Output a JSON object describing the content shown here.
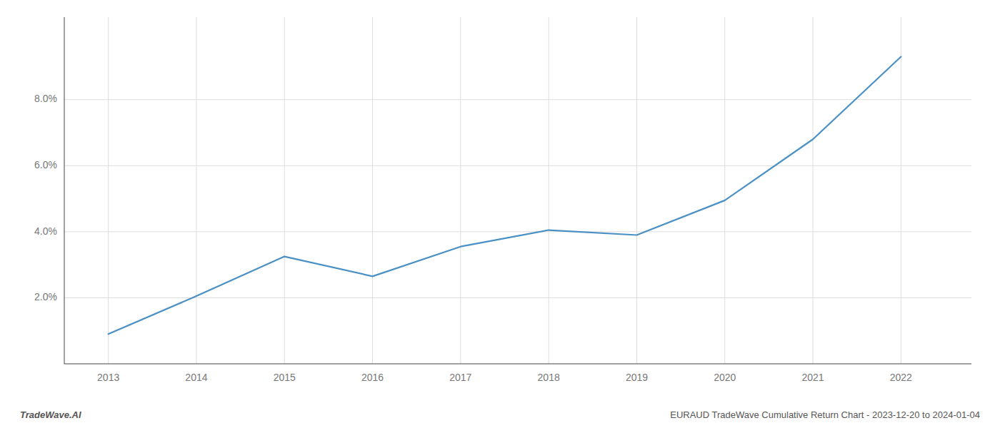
{
  "chart_data": {
    "type": "line",
    "x": [
      2013,
      2014,
      2015,
      2016,
      2017,
      2018,
      2019,
      2020,
      2021,
      2022
    ],
    "values": [
      0.009,
      0.0205,
      0.0325,
      0.0265,
      0.0355,
      0.0405,
      0.039,
      0.0495,
      0.068,
      0.093
    ],
    "color": "#4a90c4",
    "xlim": [
      2012.5,
      2022.8
    ],
    "xticks": [
      2013,
      2014,
      2015,
      2016,
      2017,
      2018,
      2019,
      2020,
      2021,
      2022
    ],
    "ylim": [
      0.0,
      0.105
    ],
    "yticks": [
      {
        "value": 0.02,
        "label": "2.0%"
      },
      {
        "value": 0.04,
        "label": "4.0%"
      },
      {
        "value": 0.06,
        "label": "6.0%"
      },
      {
        "value": 0.08,
        "label": "8.0%"
      }
    ],
    "grid": true,
    "annotations": [
      "TradeWave.AI",
      "EURAUD TradeWave Cumulative Return Chart - 2023-12-20 to 2024-01-04"
    ]
  }
}
